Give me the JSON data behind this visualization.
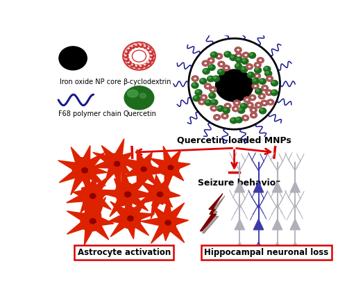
{
  "background_color": "#ffffff",
  "mnp_label": "Quercetin-loaded MNPs",
  "seizure_label": "Seizure behavior",
  "astrocyte_label": "Astrocyte activation",
  "neuronal_label": "Hippocampal neuronal loss",
  "arrow_color": "#dd0000",
  "box_color": "#dd0000",
  "red_color": "#dd2200",
  "dark_red": "#7a0000",
  "blue_dark": "#1a1a8c",
  "green_dark": "#1e6b1e",
  "gray_color": "#b0b0b8",
  "blue_neuron": "#3a3aaa"
}
